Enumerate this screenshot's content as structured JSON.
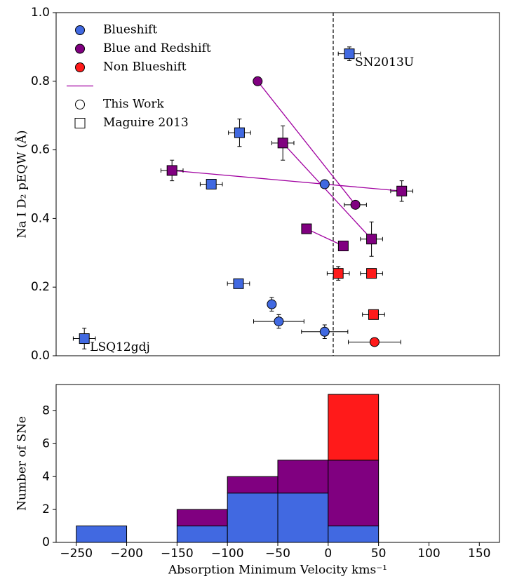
{
  "chart_data": [
    {
      "type": "scatter",
      "ylabel": "Na I D₂ pEQW (Å)",
      "xlim": [
        -270,
        170
      ],
      "ylim": [
        0,
        1
      ],
      "yticks": [
        {
          "value": 0,
          "label": "0.0"
        },
        0.2,
        0.4,
        0.6,
        0.8,
        {
          "value": 1,
          "label": "1.0"
        }
      ],
      "vline": 5,
      "link_color": "#a000a0",
      "sources": [
        {
          "name": "This Work",
          "marker": "circle"
        },
        {
          "name": "Maguire 2013",
          "marker": "square"
        }
      ],
      "series": [
        {
          "name": "Blueshift",
          "color": "#4169e1",
          "x": [
            -242,
            21,
            -88,
            -116,
            -89,
            -56,
            -49,
            -3.5,
            -3.5
          ],
          "values": [
            0.05,
            0.88,
            0.65,
            0.5,
            0.21,
            0.15,
            0.1,
            0.07,
            0.5
          ],
          "xerr": [
            11,
            11,
            11,
            11,
            11,
            3,
            25,
            23,
            null
          ],
          "yerr": [
            0.03,
            0.02,
            0.04,
            null,
            null,
            0.02,
            0.02,
            0.02,
            null
          ],
          "marker": [
            "square",
            "square",
            "square",
            "square",
            "square",
            "circle",
            "circle",
            "circle",
            "circle"
          ]
        },
        {
          "name": "Blue and Redshift",
          "color": "#800080",
          "x": [
            -70,
            -45,
            -155,
            73,
            27,
            -21.5,
            15,
            43
          ],
          "values": [
            0.8,
            0.62,
            0.54,
            0.48,
            0.44,
            0.37,
            0.32,
            0.34
          ],
          "xerr": [
            null,
            11,
            11,
            11,
            11,
            null,
            null,
            11
          ],
          "yerr": [
            null,
            0.05,
            0.03,
            0.03,
            null,
            null,
            null,
            0.05
          ],
          "marker": [
            "circle",
            "square",
            "square",
            "square",
            "circle",
            "square",
            "square",
            "square"
          ],
          "links": [
            [
              0,
              4
            ],
            [
              1,
              7
            ],
            [
              2,
              3
            ],
            [
              5,
              6
            ]
          ]
        },
        {
          "name": "Non Blueshift",
          "color": "#ff1a1a",
          "x": [
            10,
            43,
            45,
            46
          ],
          "values": [
            0.24,
            0.24,
            0.12,
            0.04
          ],
          "xerr": [
            11,
            11,
            11,
            26
          ],
          "yerr": [
            0.02,
            null,
            null,
            null
          ],
          "marker": [
            "square",
            "square",
            "square",
            "circle"
          ]
        }
      ],
      "annotations": [
        {
          "text": "SN2013U",
          "series": 0,
          "index": 1
        },
        {
          "text": "LSQ12gdj",
          "series": 0,
          "index": 0
        }
      ]
    },
    {
      "type": "histogram",
      "xlabel": "Absorption Minimum Velocity kms⁻¹",
      "ylabel": "Number of SNe",
      "bins": [
        -250,
        -200,
        -150,
        -100,
        -50,
        0,
        50,
        100,
        150
      ],
      "xlim": [
        -270,
        170
      ],
      "ylim": [
        0,
        9.6
      ],
      "xticks": [
        {
          "value": -250,
          "label": "−250"
        },
        {
          "value": -200,
          "label": "−200"
        },
        {
          "value": -150,
          "label": "−150"
        },
        {
          "value": -100,
          "label": "−100"
        },
        {
          "value": -50,
          "label": "−50"
        },
        0,
        50,
        100,
        150
      ],
      "yticks": [
        0,
        2,
        4,
        6,
        8
      ],
      "stacked": true,
      "edgecolor": "#000000",
      "series": [
        {
          "name": "Blueshift",
          "color": "#4169e1",
          "values": [
            1,
            0,
            1,
            3,
            3,
            1,
            0,
            0
          ]
        },
        {
          "name": "Blue and Redshift",
          "color": "#800080",
          "values": [
            0,
            0,
            1,
            1,
            2,
            4,
            0,
            0
          ]
        },
        {
          "name": "Non Blueshift",
          "color": "#ff1a1a",
          "values": [
            0,
            0,
            0,
            0,
            0,
            4,
            0,
            0
          ]
        }
      ]
    }
  ]
}
